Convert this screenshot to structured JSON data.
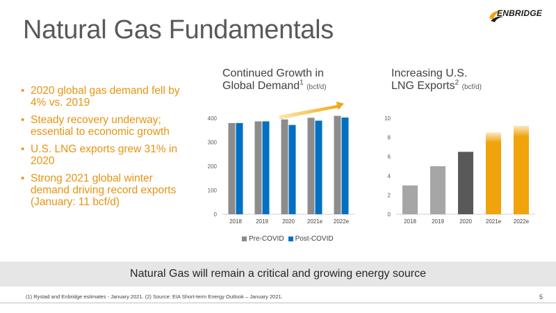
{
  "slide": {
    "title": "Natural Gas Fundamentals",
    "logo_text": "ENBRIDGE",
    "bullets": [
      "2020 global gas demand fell by 4% vs. 2019",
      "Steady recovery underway; essential to economic growth",
      "U.S. LNG exports grew 31% in 2020",
      "Strong 2021 global winter demand driving record exports (January: 11 bcf/d)"
    ],
    "banner": "Natural Gas will remain a critical and growing energy source",
    "footnote": "(1) Rystad and Enbridge estimates - January 2021.  (2) Source: EIA Short-term Energy Outlook – January 2021.",
    "page_number": "5"
  },
  "chart_left_title": {
    "line1": "Continued Growth in",
    "line2": "Global Demand",
    "sup": "1",
    "unit": "(bcf/d)"
  },
  "chart_right_title": {
    "line1": "Increasing U.S.",
    "line2": "LNG Exports",
    "sup": "2",
    "unit": "(bcf/d)"
  },
  "chart_data": [
    {
      "type": "bar",
      "categories": [
        "2018",
        "2019",
        "2020",
        "2021e",
        "2022e"
      ],
      "series": [
        {
          "name": "Pre-COVID",
          "values": [
            380,
            387,
            395,
            402,
            410
          ],
          "color": "#8c8c8c"
        },
        {
          "name": "Post-COVID",
          "values": [
            380,
            387,
            372,
            390,
            403
          ],
          "color": "#0070c0"
        }
      ],
      "ylim": [
        0,
        400
      ],
      "yticks": [
        0,
        100,
        200,
        300,
        400
      ],
      "legend": "bottom",
      "annotation": "growth-arrow"
    },
    {
      "type": "bar",
      "categories": [
        "2018",
        "2019",
        "2020",
        "2021e",
        "2022e"
      ],
      "values": [
        3.0,
        5.0,
        6.5,
        8.5,
        9.2
      ],
      "colors": [
        "#a6a6a6",
        "#a6a6a6",
        "#595959",
        "#f0a30a",
        "#f0a30a"
      ],
      "ylim": [
        0,
        10
      ],
      "yticks": [
        0,
        2,
        4,
        6,
        8,
        10
      ]
    }
  ]
}
